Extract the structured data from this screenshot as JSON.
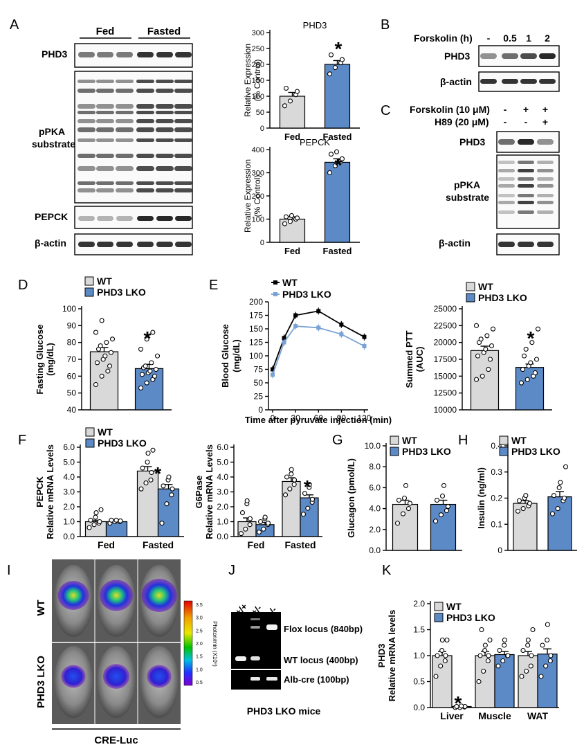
{
  "colors": {
    "wt": "#d9d9d9",
    "lko": "#5b8ac6",
    "line_wt": "#000000",
    "line_lko": "#7aa2d4"
  },
  "panel_letters": [
    "A",
    "B",
    "C",
    "D",
    "E",
    "F",
    "G",
    "H",
    "I",
    "J",
    "K"
  ],
  "panelA": {
    "groups": [
      "Fed",
      "Fasted"
    ],
    "blot_labels": [
      "PHD3",
      "pPKA",
      "substrate",
      "PEPCK",
      "β-actin"
    ]
  },
  "panelB": {
    "treatment": "Forskolin (h)",
    "timepoints": [
      "-",
      "0.5",
      "1",
      "2"
    ],
    "blot_labels": [
      "PHD3",
      "β-actin"
    ]
  },
  "panelC": {
    "row1": "Forskolin (10 μM)",
    "row1_signs": [
      "-",
      "+",
      "+"
    ],
    "row2": "H89 (20 μM)",
    "row2_signs": [
      "-",
      "-",
      "+"
    ],
    "blot_labels": [
      "PHD3",
      "pPKA",
      "substrate",
      "β-actin"
    ]
  },
  "legend": {
    "wt": "WT",
    "lko": "PHD3 LKO"
  },
  "star": "*",
  "panelI": {
    "row_labels": [
      "WT",
      "PHD3 LKO"
    ],
    "colorbar_unit": "Photon/min (X10⁶)",
    "colorbar_ticks": [
      "3.5",
      "3.0",
      "2.5",
      "2.0",
      "1.5",
      "1.0",
      "0.5"
    ],
    "caption": "CRE-Luc"
  },
  "panelJ": {
    "lanes": [
      "+/+",
      "+/-",
      "-/-"
    ],
    "bands": [
      "Flox locus (840bp)",
      "WT locus (400bp)",
      "Alb-cre (100bp)"
    ],
    "caption": "PHD3 LKO mice"
  },
  "chart_data": [
    {
      "id": "A_PHD3",
      "type": "bar",
      "title": "PHD3",
      "ylabel": "Relative Expression (% Control)",
      "categories": [
        "Fed",
        "Fasted"
      ],
      "values": [
        100,
        200
      ],
      "errors": [
        12,
        12
      ],
      "ylim": [
        0,
        300
      ],
      "yticks": [
        0,
        50,
        100,
        150,
        200,
        250,
        300
      ],
      "points": [
        [
          70,
          85,
          105,
          115,
          125
        ],
        [
          170,
          190,
          205,
          215,
          230
        ]
      ]
    },
    {
      "id": "A_PEPCK",
      "type": "bar",
      "title": "PEPCK",
      "ylabel": "Relative Expression (% Control)",
      "categories": [
        "Fed",
        "Fasted"
      ],
      "values": [
        100,
        345
      ],
      "errors": [
        10,
        15
      ],
      "ylim": [
        0,
        400
      ],
      "yticks": [
        0,
        100,
        200,
        300,
        400
      ],
      "points": [
        [
          80,
          90,
          100,
          105,
          110,
          115
        ],
        [
          300,
          330,
          350,
          360,
          380,
          390
        ]
      ]
    },
    {
      "id": "D",
      "type": "bar",
      "ylabel": "Fasting Glucose (mg/dL)",
      "categories": [
        "WT",
        "PHD3 LKO"
      ],
      "values": [
        74.5,
        64.5
      ],
      "errors": [
        2.5,
        2.5
      ],
      "ylim": [
        40,
        100
      ],
      "yticks": [
        40,
        50,
        60,
        70,
        80,
        90,
        100
      ],
      "points": [
        [
          55,
          60,
          63,
          66,
          68,
          70,
          72,
          74,
          76,
          78,
          80,
          82,
          86,
          93
        ],
        [
          53,
          56,
          58,
          60,
          61,
          62,
          63,
          64,
          65,
          66,
          68,
          72,
          76,
          82,
          86
        ]
      ]
    },
    {
      "id": "E_curve",
      "type": "line",
      "ylabel": "Blood Glucose (mg/dL)",
      "xlabel": "Time after pyruvate injection (min)",
      "x": [
        0,
        15,
        30,
        60,
        90,
        120
      ],
      "xticks": [
        0,
        30,
        60,
        90,
        120
      ],
      "ylim": [
        0,
        200
      ],
      "yticks": [
        0,
        25,
        50,
        75,
        100,
        125,
        150,
        175,
        200
      ],
      "series": [
        {
          "name": "WT",
          "values": [
            75,
            133,
            175,
            183,
            158,
            135
          ]
        },
        {
          "name": "PHD3 LKO",
          "values": [
            65,
            125,
            155,
            152,
            140,
            118
          ]
        }
      ]
    },
    {
      "id": "E_auc",
      "type": "bar",
      "ylabel": "Summed PTT (AUC)",
      "categories": [
        "WT",
        "PHD3 LKO"
      ],
      "values": [
        18800,
        16300
      ],
      "errors": [
        650,
        500
      ],
      "ylim": [
        10000,
        25000
      ],
      "yticks": [
        10000,
        12500,
        15000,
        17500,
        20000,
        22500,
        25000
      ],
      "points": [
        [
          14500,
          15000,
          16000,
          17500,
          18000,
          18500,
          19000,
          19500,
          20000,
          20500,
          21000,
          22000,
          22500
        ],
        [
          14000,
          14500,
          15000,
          15500,
          16000,
          16500,
          17000,
          17500,
          18000,
          19000,
          20000,
          22000
        ]
      ]
    },
    {
      "id": "F_PEPCK",
      "type": "bar",
      "ylabel": "PEPCK Relative mRNA Levels",
      "categories": [
        "Fed",
        "Fasted"
      ],
      "ylim": [
        0,
        6
      ],
      "yticks": [
        "0.0",
        "1.0",
        "2.0",
        "3.0",
        "4.0",
        "5.0",
        "6.0"
      ],
      "series": [
        {
          "name": "WT",
          "values": [
            1.0,
            4.4
          ],
          "errors": [
            0.1,
            0.3
          ]
        },
        {
          "name": "PHD3 LKO",
          "values": [
            1.0,
            3.2
          ],
          "errors": [
            0.05,
            0.3
          ]
        }
      ],
      "points": {
        "WT": [
          [
            0.6,
            0.8,
            0.9,
            1.0,
            1.1,
            1.3,
            1.6,
            1.8
          ],
          [
            3.2,
            3.6,
            3.8,
            4.3,
            4.6,
            5.0,
            5.6,
            5.8
          ]
        ],
        "PHD3 LKO": [
          [
            0.9,
            1.0,
            1.0,
            1.05,
            1.1,
            1.1
          ],
          [
            0.9,
            2.2,
            2.8,
            3.2,
            3.4,
            3.8,
            4.0
          ]
        ]
      }
    },
    {
      "id": "F_G6Pase",
      "type": "bar",
      "ylabel": "G6Pase Relative mRNA Levels",
      "categories": [
        "Fed",
        "Fasted"
      ],
      "ylim": [
        0,
        6
      ],
      "yticks": [
        "0.0",
        "1.0",
        "2.0",
        "3.0",
        "4.0",
        "5.0",
        "6.0"
      ],
      "series": [
        {
          "name": "WT",
          "values": [
            1.0,
            3.7
          ],
          "errors": [
            0.25,
            0.25
          ]
        },
        {
          "name": "PHD3 LKO",
          "values": [
            0.8,
            2.6
          ],
          "errors": [
            0.15,
            0.2
          ]
        }
      ],
      "points": {
        "WT": [
          [
            0.2,
            0.5,
            0.8,
            1.2,
            1.6,
            2.2,
            2.4
          ],
          [
            2.8,
            3.2,
            3.5,
            3.8,
            4.0,
            4.2,
            4.5
          ]
        ],
        "PHD3 LKO": [
          [
            0.3,
            0.5,
            0.8,
            0.9,
            1.0,
            1.2,
            1.3
          ],
          [
            1.5,
            1.9,
            2.3,
            2.5,
            2.9,
            3.3,
            3.5
          ]
        ]
      }
    },
    {
      "id": "G",
      "type": "bar",
      "ylabel": "Glucagon (pmol/L)",
      "categories": [
        "WT",
        "PHD3 LKO"
      ],
      "values": [
        4.4,
        4.4
      ],
      "errors": [
        0.4,
        0.4
      ],
      "ylim": [
        0,
        10
      ],
      "yticks": [
        "0.0",
        "2.0",
        "4.0",
        "6.0",
        "8.0",
        "10.0"
      ],
      "points": [
        [
          2.6,
          3.5,
          4.0,
          4.5,
          4.8,
          5.0,
          6.2
        ],
        [
          2.8,
          3.4,
          3.8,
          4.2,
          4.8,
          5.2,
          6.2
        ]
      ]
    },
    {
      "id": "H",
      "type": "bar",
      "ylabel": "Insulin (ng/ml)",
      "categories": [
        "WT",
        "PHD3 LKO"
      ],
      "values": [
        0.18,
        0.205
      ],
      "errors": [
        0.01,
        0.02
      ],
      "ylim": [
        0,
        0.4
      ],
      "yticks": [
        "0",
        "0.1",
        "0.2",
        "0.3",
        "0.4"
      ],
      "points": [
        [
          0.15,
          0.16,
          0.17,
          0.18,
          0.19,
          0.2,
          0.21
        ],
        [
          0.14,
          0.16,
          0.19,
          0.2,
          0.21,
          0.24,
          0.26,
          0.32
        ]
      ]
    },
    {
      "id": "K",
      "type": "bar",
      "ylabel": "PHD3 Relative mRNA levels",
      "categories": [
        "Liver",
        "Muscle",
        "WAT"
      ],
      "ylim": [
        0,
        2
      ],
      "yticks": [
        "0.0",
        "0.5",
        "1.0",
        "1.5",
        "2.0"
      ],
      "series": [
        {
          "name": "WT",
          "values": [
            1.0,
            1.0,
            1.0
          ],
          "errors": [
            0.08,
            0.08,
            0.08
          ]
        },
        {
          "name": "PHD3 LKO",
          "values": [
            0.02,
            1.02,
            1.03
          ],
          "errors": [
            0.01,
            0.06,
            0.1
          ]
        }
      ],
      "points": {
        "WT": [
          [
            0.6,
            0.8,
            0.9,
            1.0,
            1.0,
            1.1,
            1.3,
            1.3
          ],
          [
            0.5,
            0.7,
            0.9,
            1.0,
            1.0,
            1.1,
            1.2,
            1.3,
            1.5
          ],
          [
            0.6,
            0.7,
            0.8,
            1.0,
            1.1,
            1.2,
            1.3,
            1.5
          ]
        ],
        "PHD3 LKO": [
          [
            0.0,
            0.0,
            0.01,
            0.02,
            0.02,
            0.03
          ],
          [
            0.8,
            0.9,
            1.0,
            1.0,
            1.1,
            1.2,
            1.3
          ],
          [
            0.6,
            0.8,
            0.9,
            1.0,
            1.2,
            1.3,
            1.6
          ]
        ]
      }
    }
  ]
}
